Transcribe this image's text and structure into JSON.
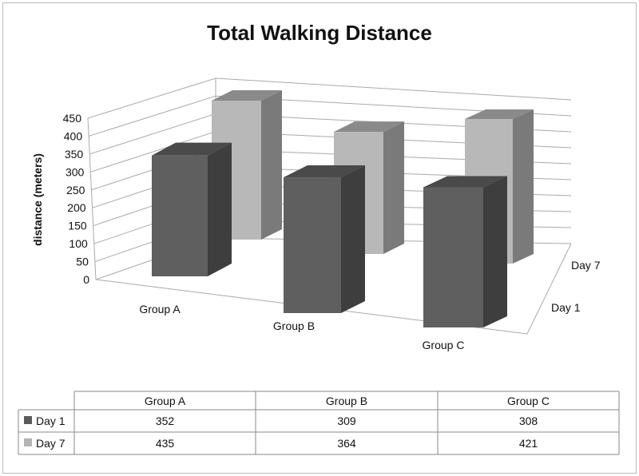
{
  "chart_data": {
    "type": "bar",
    "subtype": "3d-clustered-column",
    "title": "Total Walking Distance",
    "ylabel": "distance (meters)",
    "xlabel": "",
    "ylim": [
      0,
      450
    ],
    "yticks": [
      "0",
      "50",
      "100",
      "150",
      "200",
      "250",
      "300",
      "350",
      "400",
      "450"
    ],
    "categories": [
      "Group A",
      "Group B",
      "Group C"
    ],
    "series": [
      {
        "name": "Day 1",
        "values": [
          352,
          309,
          308
        ],
        "color": "#5a5a5a"
      },
      {
        "name": "Day 7",
        "values": [
          435,
          364,
          421
        ],
        "color": "#b4b4b4"
      }
    ],
    "depth_labels": [
      "Day 1",
      "Day 7"
    ],
    "grid": true,
    "data_table": true
  }
}
